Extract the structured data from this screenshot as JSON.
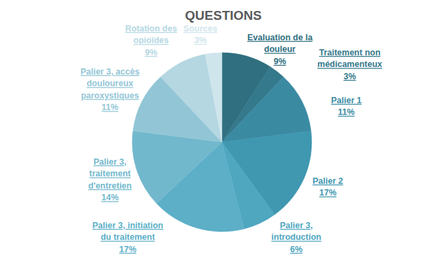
{
  "chart_data": {
    "type": "pie",
    "title": "QUESTIONS",
    "categories": [
      "Evaluation de la douleur",
      "Traitement non médicamenteux",
      "Palier 1",
      "Palier 2",
      "Palier 3, introduction",
      "Palier 3, initiation du traitement",
      "Palier 3, traitement d'entretien",
      "Palier 3, accès douloureux paroxystiques",
      "Rotation des opioïdes",
      "Sources"
    ],
    "values": [
      9,
      3,
      11,
      17,
      6,
      17,
      14,
      11,
      9,
      3
    ],
    "value_labels": [
      "9%",
      "3%",
      "11%",
      "17%",
      "6%",
      "17%",
      "14%",
      "11%",
      "9%",
      "3%"
    ],
    "colors": [
      "#2f6f80",
      "#35798c",
      "#3a8aa2",
      "#3f97b0",
      "#4ea6bf",
      "#5cafc7",
      "#72b8cd",
      "#92c6d6",
      "#b4d7e2",
      "#cfe5ec"
    ],
    "data_labels": true
  }
}
